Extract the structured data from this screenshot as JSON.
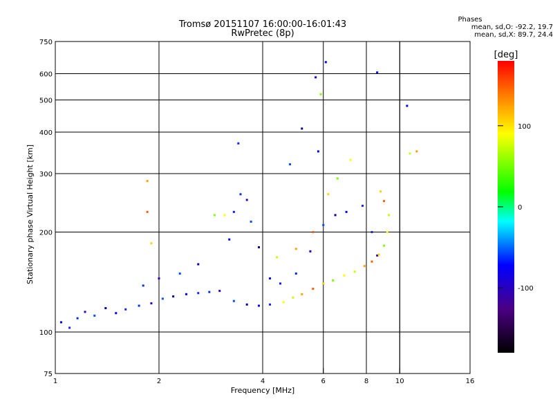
{
  "header": {
    "title_line1": "Tromsø 20151107 16:00:00-16:01:43",
    "title_line2": "RwPretec (8p)"
  },
  "phase_box": {
    "label": "Phases",
    "o_stats": "mean, sd,O: -92.2, 19.7",
    "x_stats": "mean, sd,X:  89.7, 24.4"
  },
  "colorbar": {
    "unit": "[deg]",
    "range": [
      -180,
      180
    ],
    "tick_labels": [
      "100",
      "0",
      "-100"
    ],
    "tick_values": [
      100,
      0,
      -100
    ]
  },
  "chart_data": {
    "type": "scatter",
    "title": "Tromsø 20151107 16:00:00-16:01:43",
    "subtitle": "RwPretec (8p)",
    "xlabel": "Frequency [MHz]",
    "ylabel": "Stationary phase Virtual Height [km]",
    "xscale": "log",
    "yscale": "log",
    "xlim": [
      1,
      16
    ],
    "ylim": [
      75,
      750
    ],
    "x_ticks": [
      1,
      2,
      4,
      6,
      8,
      10,
      16
    ],
    "x_tick_labels": [
      "1",
      "2",
      "4",
      "6",
      "8",
      "10",
      "16"
    ],
    "y_ticks": [
      75,
      100,
      200,
      300,
      400,
      500,
      600,
      750
    ],
    "y_tick_labels": [
      "75",
      "100",
      "200",
      "300",
      "400",
      "500",
      "600",
      "750"
    ],
    "grid": true,
    "color_encodes": "phase [deg]",
    "series": [
      {
        "mode": "O",
        "points": [
          [
            1.04,
            107
          ],
          [
            1.1,
            103
          ],
          [
            1.16,
            110
          ],
          [
            1.22,
            115
          ],
          [
            1.3,
            112
          ],
          [
            1.4,
            118
          ],
          [
            1.5,
            114
          ],
          [
            1.6,
            117
          ],
          [
            1.75,
            120
          ],
          [
            1.9,
            122
          ],
          [
            2.05,
            126
          ],
          [
            2.2,
            128
          ],
          [
            2.4,
            130
          ],
          [
            2.6,
            131
          ],
          [
            2.8,
            132
          ],
          [
            3.0,
            133
          ],
          [
            3.3,
            124
          ],
          [
            3.6,
            121
          ],
          [
            3.9,
            120
          ],
          [
            4.2,
            121
          ],
          [
            1.8,
            138
          ],
          [
            2.0,
            145
          ],
          [
            2.3,
            150
          ],
          [
            2.6,
            160
          ],
          [
            3.2,
            190
          ],
          [
            3.3,
            230
          ],
          [
            3.45,
            260
          ],
          [
            3.6,
            250
          ],
          [
            3.7,
            215
          ],
          [
            3.9,
            180
          ],
          [
            4.2,
            145
          ],
          [
            4.5,
            140
          ],
          [
            5.0,
            150
          ],
          [
            5.5,
            175
          ],
          [
            6.0,
            210
          ],
          [
            6.5,
            225
          ],
          [
            7.0,
            230
          ],
          [
            7.8,
            240
          ],
          [
            8.3,
            200
          ],
          [
            8.6,
            170
          ],
          [
            4.8,
            320
          ],
          [
            5.2,
            410
          ],
          [
            5.8,
            350
          ],
          [
            3.4,
            370
          ]
        ]
      },
      {
        "mode": "X",
        "points": [
          [
            4.6,
            123
          ],
          [
            4.9,
            127
          ],
          [
            5.2,
            130
          ],
          [
            5.6,
            135
          ],
          [
            6.0,
            140
          ],
          [
            6.4,
            143
          ],
          [
            6.9,
            148
          ],
          [
            7.4,
            152
          ],
          [
            7.9,
            158
          ],
          [
            8.3,
            163
          ],
          [
            8.7,
            171
          ],
          [
            9.0,
            182
          ],
          [
            9.2,
            200
          ],
          [
            9.3,
            225
          ],
          [
            1.85,
            285
          ],
          [
            1.85,
            230
          ],
          [
            1.9,
            185
          ],
          [
            2.9,
            225
          ],
          [
            3.1,
            225
          ],
          [
            4.4,
            168
          ],
          [
            5.0,
            178
          ],
          [
            5.6,
            200
          ],
          [
            6.2,
            260
          ],
          [
            6.6,
            290
          ],
          [
            7.2,
            330
          ],
          [
            10.7,
            345
          ],
          [
            11.2,
            350
          ],
          [
            9.0,
            248
          ],
          [
            8.8,
            265
          ],
          [
            5.9,
            520
          ]
        ]
      }
    ],
    "outliers": [
      [
        6.1,
        650
      ],
      [
        5.7,
        585
      ],
      [
        10.5,
        480
      ],
      [
        8.6,
        605
      ]
    ]
  }
}
